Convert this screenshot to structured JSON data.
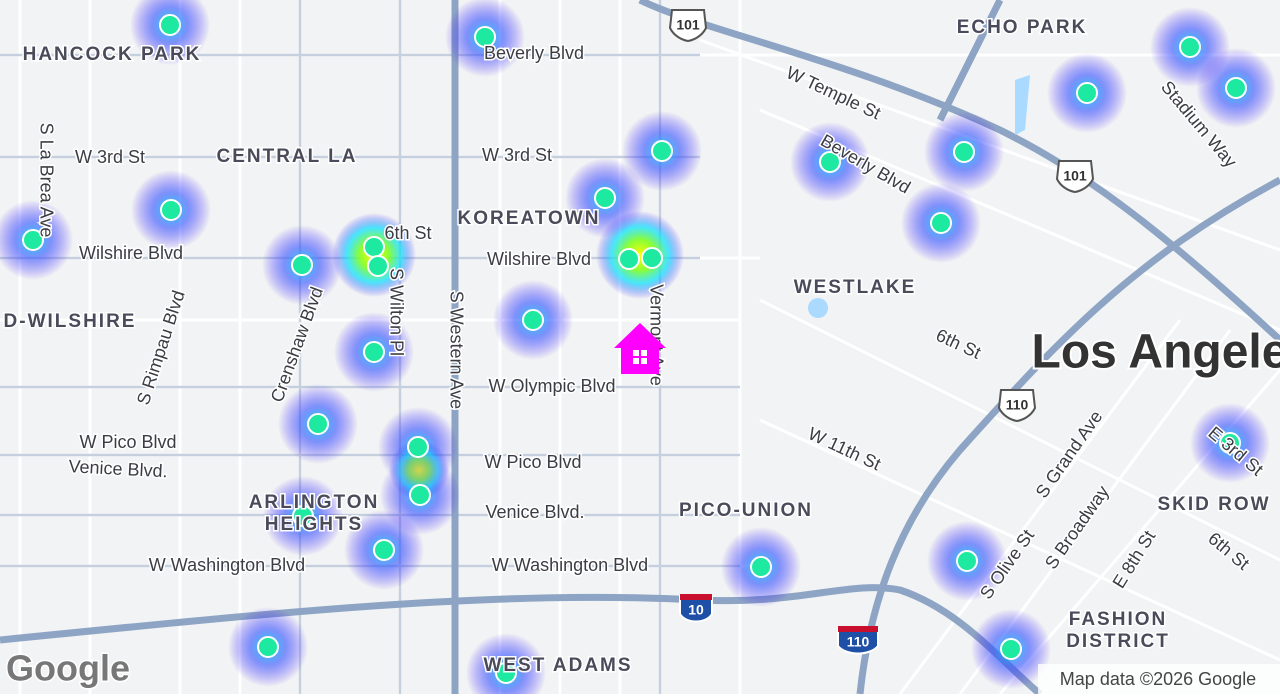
{
  "neighborhoods": [
    "HANCOCK PARK",
    "CENTRAL LA",
    "KOREATOWN",
    "WESTLAKE",
    "ECHO PARK",
    "D-WILSHIRE",
    "ARLINGTON",
    "HEIGHTS",
    "PICO-UNION",
    "SKID ROW",
    "FASHION",
    "DISTRICT",
    "WEST ADAMS"
  ],
  "streets": [
    "Beverly Blvd",
    "W 3rd St",
    "W 3rd St",
    "Wilshire Blvd",
    "Wilshire Blvd",
    "6th St",
    "S Wilton Pl",
    "S Western Ave",
    "Vermont Ave",
    "S La Brea Ave",
    "S Rimpau Blvd",
    "Crenshaw Blvd",
    "W Olympic Blvd",
    "W Pico Blvd",
    "Venice Blvd.",
    "W Pico Blvd",
    "Venice Blvd.",
    "W Washington Blvd",
    "W Washington Blvd",
    "W Temple St",
    "Beverly Blvd",
    "Stadium Way",
    "6th St",
    "W 11th St",
    "S Grand Ave",
    "S Broadway",
    "S Olive St",
    "E 8th St",
    "6th St",
    "E 3rd St"
  ],
  "city": "Los Angele",
  "shields": [
    "101",
    "101",
    "110",
    "10",
    "110"
  ],
  "logo": "Google",
  "attribution": "Map data ©2026 Google"
}
